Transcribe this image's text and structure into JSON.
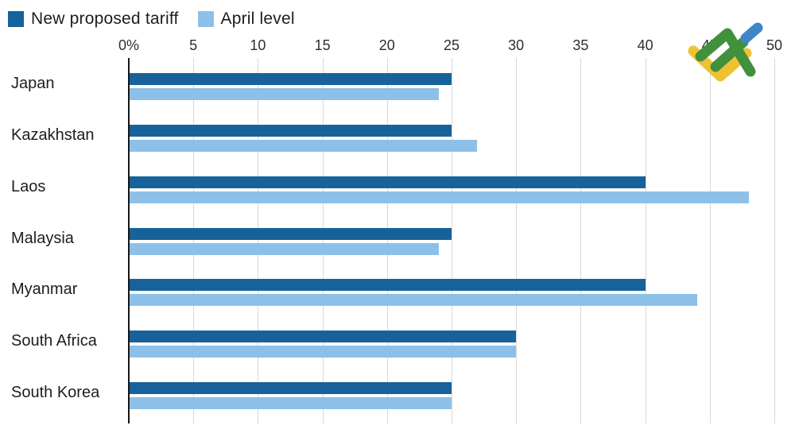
{
  "legend": {
    "items": [
      {
        "label": "New proposed tariff",
        "color": "#17629b"
      },
      {
        "label": "April level",
        "color": "#8dc0e8"
      }
    ]
  },
  "logo": {
    "name": "LiteFinance",
    "colors": {
      "green": "#40903c",
      "blue": "#3e86c9",
      "yellow": "#eec232"
    }
  },
  "chart_data": {
    "type": "bar",
    "orientation": "horizontal",
    "title": "",
    "categories": [
      "Japan",
      "Kazakhstan",
      "Laos",
      "Malaysia",
      "Myanmar",
      "South Africa",
      "South Korea"
    ],
    "series": [
      {
        "name": "New proposed tariff",
        "color": "#17629b",
        "values": [
          25,
          25,
          40,
          25,
          40,
          30,
          25
        ]
      },
      {
        "name": "April level",
        "color": "#8dc0e8",
        "values": [
          24,
          27,
          48,
          24,
          44,
          30,
          25
        ]
      }
    ],
    "x_axis": {
      "tick_labels": [
        "0%",
        "5",
        "10",
        "15",
        "20",
        "25",
        "30",
        "35",
        "40",
        "45",
        "50"
      ],
      "tick_values": [
        0,
        5,
        10,
        15,
        20,
        25,
        30,
        35,
        40,
        45,
        50
      ],
      "min": 0,
      "max": 50,
      "unit": "%"
    },
    "grid": {
      "vertical": true,
      "color": "#d8d8d8"
    },
    "axis_color": "#161616",
    "legend_position": "top-left",
    "background": "#ffffff",
    "text_color": "#1d1d1d"
  }
}
